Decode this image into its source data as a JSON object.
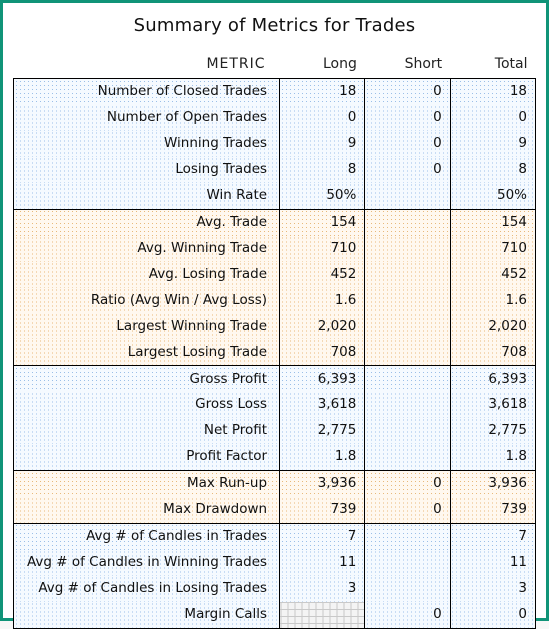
{
  "title": "Summary of Metrics for Trades",
  "columns": [
    "METRIC",
    "Long",
    "Short",
    "Total"
  ],
  "colors": {
    "frame_border": "#109478",
    "blue_dot": "#9bbfe8",
    "blue_bg": "#f5faff",
    "orange_dot": "#e8b97a",
    "orange_bg": "#fff8ef",
    "grid_line": "#c9c9c9",
    "grid_bg": "#f4f4f4"
  },
  "groups": [
    {
      "bg": "blue",
      "rows": [
        {
          "metric": "Number of Closed Trades",
          "long": "18",
          "short": "0",
          "total": "18"
        },
        {
          "metric": "Number of Open Trades",
          "long": "0",
          "short": "0",
          "total": "0"
        },
        {
          "metric": "Winning Trades",
          "long": "9",
          "short": "0",
          "total": "9"
        },
        {
          "metric": "Losing Trades",
          "long": "8",
          "short": "0",
          "total": "8"
        },
        {
          "metric": "Win Rate",
          "long": "50%",
          "short": "",
          "total": "50%"
        }
      ]
    },
    {
      "bg": "orange",
      "rows": [
        {
          "metric": "Avg. Trade",
          "long": "154",
          "short": "",
          "total": "154"
        },
        {
          "metric": "Avg. Winning Trade",
          "long": "710",
          "short": "",
          "total": "710"
        },
        {
          "metric": "Avg. Losing Trade",
          "long": "452",
          "short": "",
          "total": "452"
        },
        {
          "metric": "Ratio (Avg Win / Avg Loss)",
          "long": "1.6",
          "short": "",
          "total": "1.6"
        },
        {
          "metric": "Largest Winning Trade",
          "long": "2,020",
          "short": "",
          "total": "2,020"
        },
        {
          "metric": "Largest Losing Trade",
          "long": "708",
          "short": "",
          "total": "708"
        }
      ]
    },
    {
      "bg": "blue",
      "rows": [
        {
          "metric": "Gross Profit",
          "long": "6,393",
          "short": "",
          "total": "6,393"
        },
        {
          "metric": "Gross Loss",
          "long": "3,618",
          "short": "",
          "total": "3,618"
        },
        {
          "metric": "Net Profit",
          "long": "2,775",
          "short": "",
          "total": "2,775"
        },
        {
          "metric": "Profit Factor",
          "long": "1.8",
          "short": "",
          "total": "1.8"
        }
      ]
    },
    {
      "bg": "orange",
      "rows": [
        {
          "metric": "Max Run-up",
          "long": "3,936",
          "short": "0",
          "total": "3,936"
        },
        {
          "metric": "Max Drawdown",
          "long": "739",
          "short": "0",
          "total": "739"
        }
      ]
    },
    {
      "bg": "blue",
      "rows": [
        {
          "metric": "Avg # of Candles in Trades",
          "long": "7",
          "short": "",
          "total": "7"
        },
        {
          "metric": "Avg # of Candles in Winning Trades",
          "long": "11",
          "short": "",
          "total": "11"
        },
        {
          "metric": "Avg # of Candles in Losing Trades",
          "long": "3",
          "short": "",
          "total": "3"
        },
        {
          "metric": "Margin Calls",
          "long": "",
          "long_hatch": true,
          "short": "0",
          "total": "0"
        }
      ]
    }
  ]
}
